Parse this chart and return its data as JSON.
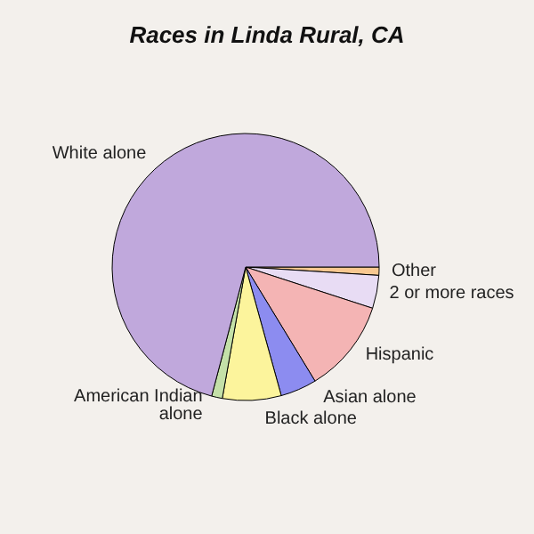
{
  "chart_data": {
    "type": "pie",
    "title": "Races in Linda Rural, CA",
    "categories": [
      "Other",
      "2 or more races",
      "Hispanic",
      "Asian alone",
      "Black alone",
      "American Indian\nalone",
      "White alone"
    ],
    "values": [
      1,
      4,
      11.3,
      4.4,
      7.1,
      1.3,
      70.9
    ],
    "colors": [
      "#f8c890",
      "#e8dcf4",
      "#f4b4b4",
      "#8c8cf0",
      "#fcf49c",
      "#c4e0a8",
      "#c0a8dc"
    ],
    "legend": false
  }
}
